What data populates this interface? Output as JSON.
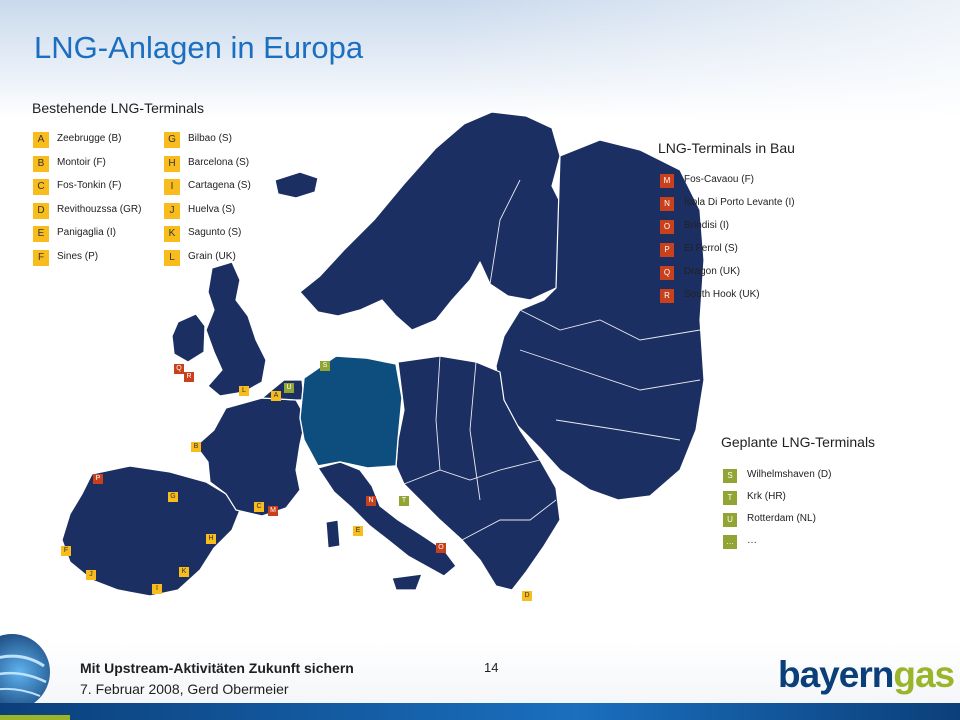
{
  "title": "LNG-Anlagen in Europa",
  "existing": {
    "heading": "Bestehende LNG-Terminals",
    "items": [
      {
        "code": "A",
        "name": "Zeebrugge (B)"
      },
      {
        "code": "B",
        "name": "Montoir (F)"
      },
      {
        "code": "C",
        "name": "Fos-Tonkin (F)"
      },
      {
        "code": "D",
        "name": "Revithouzssa (GR)"
      },
      {
        "code": "E",
        "name": "Panigaglia (I)"
      },
      {
        "code": "F",
        "name": "Sines (P)"
      },
      {
        "code": "G",
        "name": "Bilbao (S)"
      },
      {
        "code": "H",
        "name": "Barcelona (S)"
      },
      {
        "code": "I",
        "name": "Cartagena (S)"
      },
      {
        "code": "J",
        "name": "Huelva (S)"
      },
      {
        "code": "K",
        "name": "Sagunto (S)"
      },
      {
        "code": "L",
        "name": "Grain (UK)"
      }
    ]
  },
  "construction": {
    "heading": "LNG-Terminals in Bau",
    "items": [
      {
        "code": "M",
        "name": "Fos-Cavaou (F)"
      },
      {
        "code": "N",
        "name": "Isola Di Porto Levante (I)"
      },
      {
        "code": "O",
        "name": "Brindisi (I)"
      },
      {
        "code": "P",
        "name": "El Ferrol (S)"
      },
      {
        "code": "Q",
        "name": "Dragon (UK)"
      },
      {
        "code": "R",
        "name": "South Hook (UK)"
      }
    ]
  },
  "planned": {
    "heading": "Geplante LNG-Terminals",
    "items": [
      {
        "code": "S",
        "name": "Wilhelmshaven (D)"
      },
      {
        "code": "T",
        "name": "Krk (HR)"
      },
      {
        "code": "U",
        "name": "Rotterdam (NL)"
      },
      {
        "code": "…",
        "name": "…"
      }
    ]
  },
  "map_markers": [
    {
      "code": "A",
      "status": "existing"
    },
    {
      "code": "B",
      "status": "existing"
    },
    {
      "code": "C",
      "status": "existing"
    },
    {
      "code": "D",
      "status": "existing"
    },
    {
      "code": "E",
      "status": "existing"
    },
    {
      "code": "F",
      "status": "existing"
    },
    {
      "code": "G",
      "status": "existing"
    },
    {
      "code": "H",
      "status": "existing"
    },
    {
      "code": "I",
      "status": "existing"
    },
    {
      "code": "J",
      "status": "existing"
    },
    {
      "code": "K",
      "status": "existing"
    },
    {
      "code": "L",
      "status": "existing"
    },
    {
      "code": "M",
      "status": "construction"
    },
    {
      "code": "N",
      "status": "construction"
    },
    {
      "code": "O",
      "status": "construction"
    },
    {
      "code": "P",
      "status": "construction"
    },
    {
      "code": "Q",
      "status": "construction"
    },
    {
      "code": "R",
      "status": "construction"
    },
    {
      "code": "S",
      "status": "planned"
    },
    {
      "code": "T",
      "status": "planned"
    },
    {
      "code": "U",
      "status": "planned"
    }
  ],
  "colors": {
    "title": "#1b6fc0",
    "map_land": "#1b2f63",
    "germany": "#0e4e7e",
    "existing": "#f8bc1c",
    "construction": "#c8401c",
    "planned": "#92a433",
    "logo_primary": "#0b3f7a",
    "logo_accent": "#9bb52b"
  },
  "footer": {
    "title": "Mit Upstream-Aktivitäten Zukunft sichern",
    "date": "7. Februar 2008, Gerd Obermeier",
    "page": "14",
    "logo_main": "bayern",
    "logo_accent": "gas"
  }
}
